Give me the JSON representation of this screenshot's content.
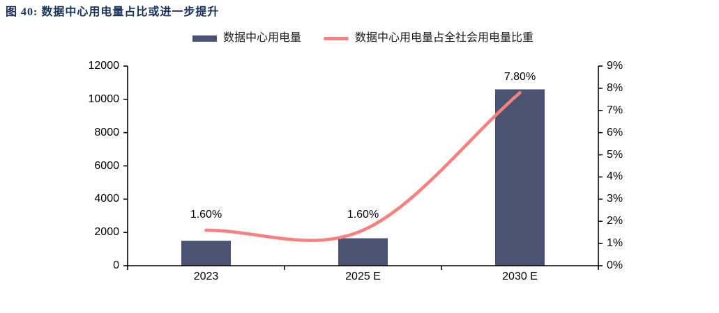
{
  "header": {
    "title": "图 40:  数据中心用电量占比或进一步提升",
    "title_color": "#16325A"
  },
  "legend": {
    "items": [
      {
        "label": "数据中心用电量",
        "marker": "bar-swatch"
      },
      {
        "label": "数据中心用电量占全社会用电量比重",
        "marker": "line-swatch"
      }
    ]
  },
  "colors": {
    "bar": "#4A5472",
    "line": "#F98080",
    "axis": "#000000",
    "text": "#000000",
    "background": "#ffffff"
  },
  "chart_data": {
    "type": "bar",
    "subtype": "bar+line combo, dual axis",
    "categories": [
      "2023",
      "2025 E",
      "2030 E"
    ],
    "series": [
      {
        "name": "数据中心用电量",
        "type": "bar",
        "axis": "left",
        "values": [
          1500,
          1650,
          10600
        ]
      },
      {
        "name": "数据中心用电量占全社会用电量比重",
        "type": "line",
        "axis": "right",
        "smooth": true,
        "values": [
          1.6,
          1.6,
          7.8
        ],
        "point_labels": [
          "1.60%",
          "1.60%",
          "7.80%"
        ]
      }
    ],
    "left_axis": {
      "min": 0,
      "max": 12000,
      "step": 2000,
      "tick_labels": [
        "0",
        "2000",
        "4000",
        "6000",
        "8000",
        "10000",
        "12000"
      ]
    },
    "right_axis": {
      "min": 0,
      "max": 9,
      "step": 1,
      "tick_labels": [
        "0%",
        "1%",
        "2%",
        "3%",
        "4%",
        "5%",
        "6%",
        "7%",
        "8%",
        "9%"
      ]
    },
    "grid": false,
    "legend_position": "top-center",
    "title": "数据中心用电量占比或进一步提升"
  }
}
